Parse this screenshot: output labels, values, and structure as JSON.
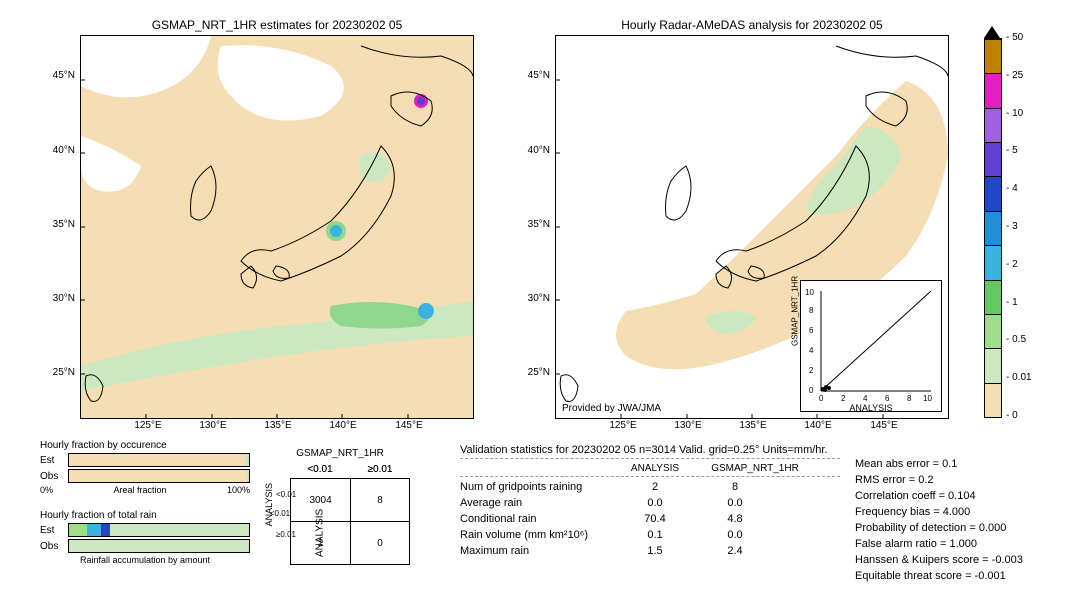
{
  "left_map": {
    "title": "GSMAP_NRT_1HR estimates for 20230202 05",
    "x_ticks": [
      "125°E",
      "130°E",
      "135°E",
      "140°E",
      "145°E"
    ],
    "y_ticks": [
      "25°N",
      "30°N",
      "35°N",
      "40°N",
      "45°N"
    ],
    "xlim": [
      120,
      150
    ],
    "ylim": [
      22,
      48
    ],
    "background_color": "#f5deb3",
    "land_color": "#ffffff",
    "precip_light": "#cce8c0",
    "precip_med": "#8fd68f",
    "precip_cyan": "#3ab3e0",
    "precip_magenta": "#e020c0"
  },
  "right_map": {
    "title": "Hourly Radar-AMeDAS analysis for 20230202 05",
    "x_ticks": [
      "125°E",
      "130°E",
      "135°E",
      "140°E",
      "145°E"
    ],
    "y_ticks": [
      "25°N",
      "30°N",
      "35°N",
      "40°N",
      "45°N"
    ],
    "provider": "Provided by JWA/JMA",
    "inset": {
      "xlim": [
        0,
        10
      ],
      "ylim": [
        0,
        10
      ],
      "ticks": [
        "0",
        "2",
        "4",
        "6",
        "8",
        "10"
      ],
      "xlabel": "ANALYSIS",
      "ylabel": "GSMAP_NRT_1HR"
    }
  },
  "colorbar": {
    "ticks": [
      "0",
      "0.01",
      "0.5",
      "1",
      "2",
      "3",
      "4",
      "5",
      "10",
      "25",
      "50"
    ],
    "colors": [
      "#f5deb3",
      "#cce8c0",
      "#9edc8a",
      "#63c963",
      "#3ab3e0",
      "#1f8fd6",
      "#2047c9",
      "#6040d0",
      "#a060e0",
      "#e020c0",
      "#c08000"
    ]
  },
  "hourly_occurrence": {
    "title": "Hourly fraction by occurence",
    "rows": [
      {
        "label": "Est",
        "seg1_color": "#f5deb3",
        "seg1_pct": 98,
        "seg2_color": "#cce8c0",
        "seg2_pct": 2
      },
      {
        "label": "Obs",
        "seg1_color": "#f5deb3",
        "seg1_pct": 99,
        "seg2_color": "#cce8c0",
        "seg2_pct": 1
      }
    ],
    "axis": [
      "0%",
      "Areal fraction",
      "100%"
    ]
  },
  "hourly_total": {
    "title": "Hourly fraction of total rain",
    "rows": [
      {
        "label": "Est",
        "segs": [
          {
            "color": "#9edc8a",
            "pct": 10
          },
          {
            "color": "#3ab3e0",
            "pct": 8
          },
          {
            "color": "#2047c9",
            "pct": 5
          },
          {
            "color": "#cce8c0",
            "pct": 77
          }
        ]
      },
      {
        "label": "Obs",
        "segs": [
          {
            "color": "#cce8c0",
            "pct": 100
          }
        ]
      }
    ],
    "footer": "Rainfall accumulation by amount"
  },
  "contingency": {
    "col_label": "GSMAP_NRT_1HR",
    "row_label": "ANALYSIS",
    "col_headers": [
      "<0.01",
      "≥0.01"
    ],
    "row_headers": [
      "<0.01",
      "≥0.01"
    ],
    "cells": [
      [
        "3004",
        "8"
      ],
      [
        "2",
        "0"
      ]
    ]
  },
  "validation": {
    "title": "Validation statistics for 20230202 05  n=3014 Valid. grid=0.25° Units=mm/hr.",
    "columns": [
      "ANALYSIS",
      "GSMAP_NRT_1HR"
    ],
    "rows": [
      {
        "key": "Num of gridpoints raining",
        "v1": "2",
        "v2": "8"
      },
      {
        "key": "Average rain",
        "v1": "0.0",
        "v2": "0.0"
      },
      {
        "key": "Conditional rain",
        "v1": "70.4",
        "v2": "4.8"
      },
      {
        "key": "Rain volume (mm km²10⁶)",
        "v1": "0.1",
        "v2": "0.0"
      },
      {
        "key": "Maximum rain",
        "v1": "1.5",
        "v2": "2.4"
      }
    ]
  },
  "metrics": [
    {
      "key": "Mean abs error",
      "v": "0.1"
    },
    {
      "key": "RMS error",
      "v": "0.2"
    },
    {
      "key": "Correlation coeff",
      "v": "0.104"
    },
    {
      "key": "Frequency bias",
      "v": "4.000"
    },
    {
      "key": "Probability of detection",
      "v": "0.000"
    },
    {
      "key": "False alarm ratio",
      "v": "1.000"
    },
    {
      "key": "Hanssen & Kuipers score",
      "v": "-0.003"
    },
    {
      "key": "Equitable threat score",
      "v": "-0.001"
    }
  ]
}
